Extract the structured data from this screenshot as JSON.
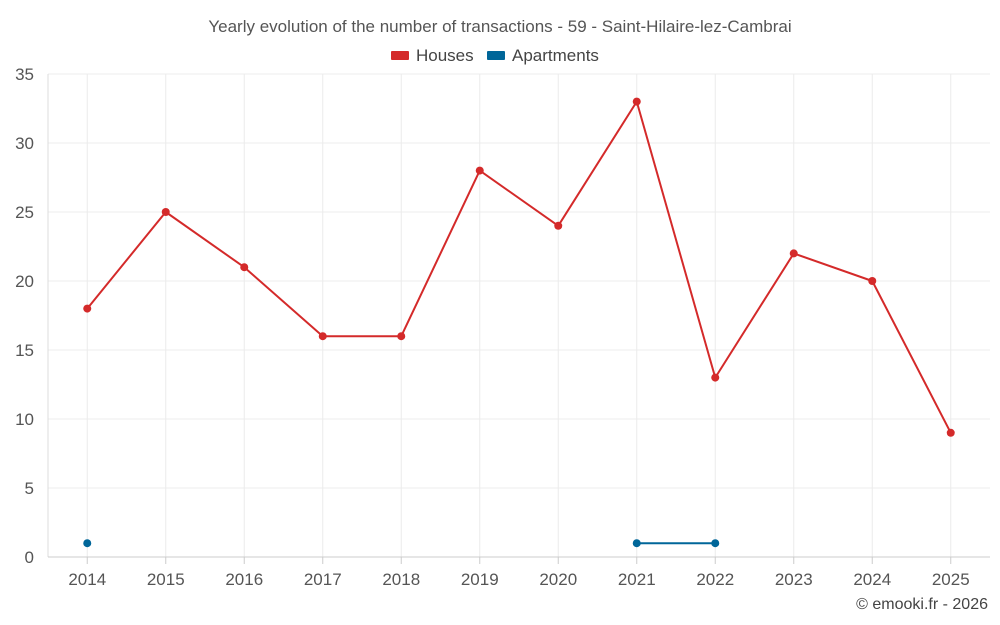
{
  "chart_data": {
    "type": "line",
    "title": "Yearly evolution of the number of transactions - 59 - Saint-Hilaire-lez-Cambrai",
    "categories": [
      "2014",
      "2015",
      "2016",
      "2017",
      "2018",
      "2019",
      "2020",
      "2021",
      "2022",
      "2023",
      "2024",
      "2025"
    ],
    "series": [
      {
        "name": "Houses",
        "color": "#d42a2a",
        "values": [
          18,
          25,
          21,
          16,
          16,
          28,
          24,
          33,
          13,
          22,
          20,
          9
        ]
      },
      {
        "name": "Apartments",
        "color": "#006699",
        "values": [
          1,
          null,
          null,
          null,
          null,
          null,
          null,
          1,
          1,
          null,
          null,
          null
        ]
      }
    ],
    "ylim": [
      0,
      35
    ],
    "yticks": [
      0,
      5,
      10,
      15,
      20,
      25,
      30,
      35
    ],
    "xlabel": "",
    "ylabel": "",
    "grid": true,
    "legend_position": "top-center",
    "credit": "© emooki.fr - 2026"
  }
}
